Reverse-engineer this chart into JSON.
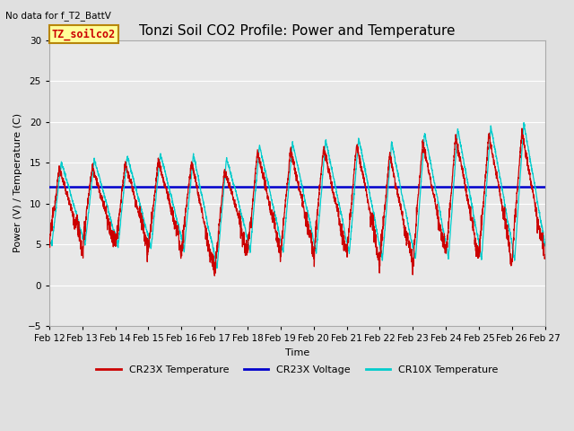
{
  "title": "Tonzi Soil CO2 Profile: Power and Temperature",
  "subtitle": "No data for f_T2_BattV",
  "xlabel": "Time",
  "ylabel": "Power (V) / Temperature (C)",
  "ylim": [
    -5,
    30
  ],
  "yticks": [
    -5,
    0,
    5,
    10,
    15,
    20,
    25,
    30
  ],
  "background_color": "#e8e8e8",
  "plot_bg_color": "#e8e8e8",
  "voltage_level": 12.0,
  "legend_label": "TZ_soilco2",
  "x_tick_labels": [
    "Feb 12",
    "Feb 13",
    "Feb 14",
    "Feb 15",
    "Feb 16",
    "Feb 17",
    "Feb 18",
    "Feb 19",
    "Feb 20",
    "Feb 21",
    "Feb 22",
    "Feb 23",
    "Feb 24",
    "Feb 25",
    "Feb 26",
    "Feb 27"
  ],
  "cr23x_color": "#cc0000",
  "cr10x_color": "#00cccc",
  "voltage_color": "#0000cc",
  "grid_color": "#ffffff",
  "title_fontsize": 11,
  "axis_label_fontsize": 8,
  "tick_fontsize": 7.5,
  "fig_bg": "#e0e0e0"
}
